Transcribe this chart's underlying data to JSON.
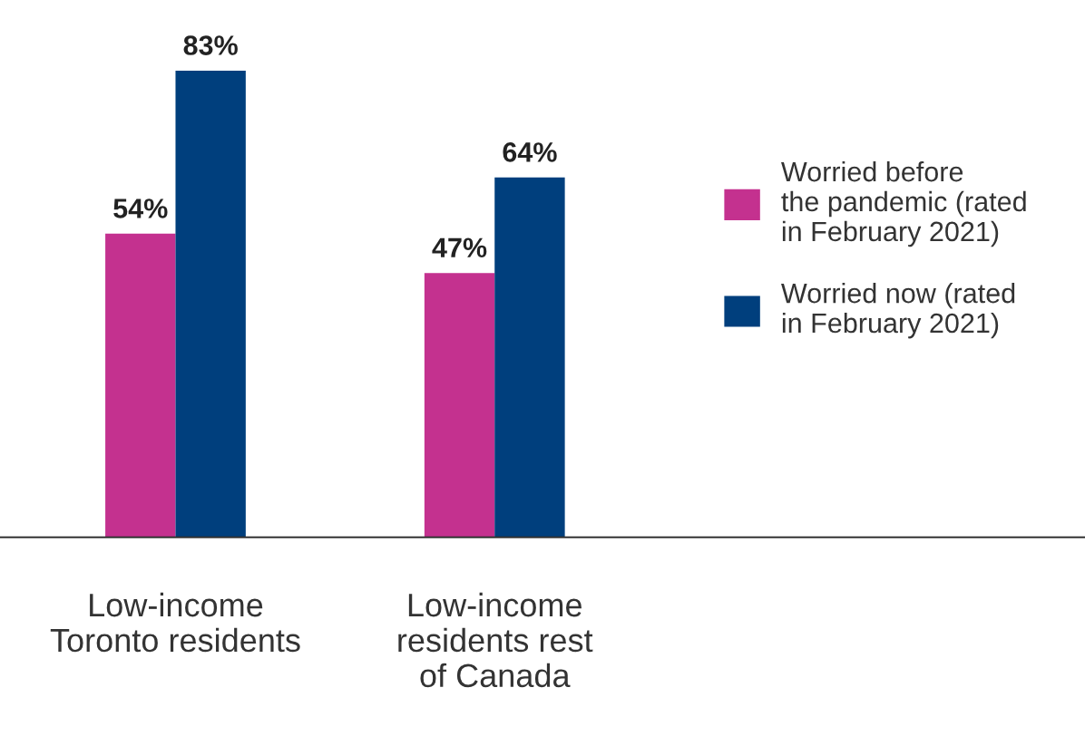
{
  "chart_data": {
    "type": "bar",
    "categories": [
      "Low-income\nToronto residents",
      "Low-income\nresidents rest\nof Canada"
    ],
    "series": [
      {
        "name": "Worried before\nthe pandemic (rated\nin February 2021)",
        "color": "#c4318f",
        "values": [
          54,
          47
        ],
        "value_labels": [
          "54%",
          "47%"
        ]
      },
      {
        "name": "Worried now (rated\nin February 2021)",
        "color": "#003f7d",
        "values": [
          83,
          64
        ],
        "value_labels": [
          "83%",
          "64%"
        ]
      }
    ],
    "legend": "right",
    "grid": false
  }
}
